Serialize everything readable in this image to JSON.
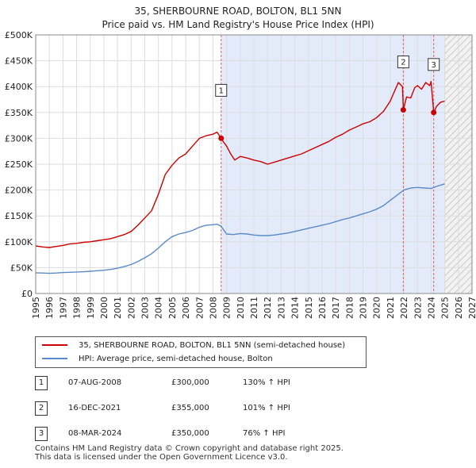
{
  "title": "35, SHERBOURNE ROAD, BOLTON, BL1 5NN",
  "subtitle": "Price paid vs. HM Land Registry's House Price Index (HPI)",
  "colors": {
    "price_line": "#cc0000",
    "hpi_line": "#5b8ac9",
    "shade": "#e3ebfa",
    "grid": "#dddddd"
  },
  "chart_data": {
    "type": "line",
    "xlim": [
      1995,
      2027
    ],
    "ylim": [
      0,
      500000
    ],
    "yticks": [
      0,
      50000,
      100000,
      150000,
      200000,
      250000,
      300000,
      350000,
      400000,
      450000,
      500000
    ],
    "ytick_labels": [
      "£0",
      "£50K",
      "£100K",
      "£150K",
      "£200K",
      "£250K",
      "£300K",
      "£350K",
      "£400K",
      "£450K",
      "£500K"
    ],
    "xticks": [
      1995,
      1996,
      1997,
      1998,
      1999,
      2000,
      2001,
      2002,
      2003,
      2004,
      2005,
      2006,
      2007,
      2008,
      2009,
      2010,
      2011,
      2012,
      2013,
      2014,
      2015,
      2016,
      2017,
      2018,
      2019,
      2020,
      2021,
      2022,
      2023,
      2024,
      2025,
      2026,
      2027
    ],
    "ownership_shade": [
      2008.6,
      2025.0
    ],
    "future_hatch_from": 2025.0,
    "series": [
      {
        "name": "35, SHERBOURNE ROAD, BOLTON, BL1 5NN (semi-detached house)",
        "color": "#cc0000",
        "x": [
          1995,
          1995.5,
          1996,
          1996.5,
          1997,
          1997.5,
          1998,
          1998.5,
          1999,
          1999.5,
          2000,
          2000.5,
          2001,
          2001.5,
          2002,
          2002.5,
          2003,
          2003.5,
          2004,
          2004.5,
          2005,
          2005.5,
          2006,
          2006.5,
          2007,
          2007.5,
          2008,
          2008.3,
          2008.6,
          2008.8,
          2009,
          2009.3,
          2009.6,
          2010,
          2010.5,
          2011,
          2011.5,
          2012,
          2012.5,
          2013,
          2013.5,
          2014,
          2014.5,
          2015,
          2015.5,
          2016,
          2016.5,
          2017,
          2017.5,
          2018,
          2018.5,
          2019,
          2019.5,
          2020,
          2020.5,
          2021,
          2021.3,
          2021.6,
          2021.9,
          2021.96,
          2022.2,
          2022.5,
          2022.8,
          2023,
          2023.3,
          2023.6,
          2023.9,
          2024.0,
          2024.19,
          2024.4,
          2024.7,
          2025.0
        ],
        "values": [
          92000,
          90000,
          89000,
          91000,
          93000,
          96000,
          97000,
          99000,
          100000,
          102000,
          104000,
          106000,
          110000,
          114000,
          120000,
          132000,
          146000,
          160000,
          192000,
          230000,
          248000,
          262000,
          270000,
          285000,
          300000,
          305000,
          308000,
          312000,
          300000,
          292000,
          285000,
          270000,
          258000,
          265000,
          262000,
          258000,
          255000,
          250000,
          254000,
          258000,
          262000,
          266000,
          270000,
          276000,
          282000,
          288000,
          294000,
          302000,
          308000,
          316000,
          322000,
          328000,
          332000,
          340000,
          352000,
          372000,
          390000,
          408000,
          400000,
          355000,
          380000,
          378000,
          398000,
          402000,
          395000,
          408000,
          402000,
          410000,
          350000,
          362000,
          370000,
          372000
        ]
      },
      {
        "name": "HPI: Average price, semi-detached house, Bolton",
        "color": "#5b8ac9",
        "x": [
          1995,
          1995.5,
          1996,
          1996.5,
          1997,
          1997.5,
          1998,
          1998.5,
          1999,
          1999.5,
          2000,
          2000.5,
          2001,
          2001.5,
          2002,
          2002.5,
          2003,
          2003.5,
          2004,
          2004.5,
          2005,
          2005.5,
          2006,
          2006.5,
          2007,
          2007.5,
          2008,
          2008.3,
          2008.6,
          2009,
          2009.5,
          2010,
          2010.5,
          2011,
          2011.5,
          2012,
          2012.5,
          2013,
          2013.5,
          2014,
          2014.5,
          2015,
          2015.5,
          2016,
          2016.5,
          2017,
          2017.5,
          2018,
          2018.5,
          2019,
          2019.5,
          2020,
          2020.5,
          2021,
          2021.5,
          2022,
          2022.5,
          2023,
          2023.5,
          2024,
          2024.5,
          2025.0
        ],
        "values": [
          40000,
          39500,
          39000,
          39500,
          40500,
          41000,
          41500,
          42000,
          43000,
          44000,
          45000,
          46500,
          49000,
          52000,
          56000,
          62000,
          69000,
          77000,
          88000,
          100000,
          110000,
          115000,
          118000,
          122000,
          128000,
          132000,
          133000,
          134000,
          130000,
          115000,
          114000,
          116000,
          115000,
          113000,
          112000,
          112000,
          113000,
          115000,
          117000,
          120000,
          123000,
          126000,
          129000,
          132000,
          135000,
          139000,
          143000,
          146000,
          150000,
          154000,
          158000,
          163000,
          170000,
          180000,
          190000,
          200000,
          204000,
          205000,
          204000,
          203000,
          208000,
          212000
        ]
      }
    ],
    "sales": [
      {
        "label": "1",
        "x": 2008.6,
        "value": 300000,
        "date": "07-AUG-2008",
        "price": "£300,000",
        "hpi": "130% ↑ HPI"
      },
      {
        "label": "2",
        "x": 2021.96,
        "value": 355000,
        "date": "16-DEC-2021",
        "price": "£355,000",
        "hpi": "101% ↑ HPI"
      },
      {
        "label": "3",
        "x": 2024.19,
        "value": 350000,
        "date": "08-MAR-2024",
        "price": "£350,000",
        "hpi": "76% ↑ HPI"
      }
    ]
  },
  "legend": {
    "price_label": "35, SHERBOURNE ROAD, BOLTON, BL1 5NN (semi-detached house)",
    "hpi_label": "HPI: Average price, semi-detached house, Bolton"
  },
  "footer": {
    "line1": "Contains HM Land Registry data © Crown copyright and database right 2025.",
    "line2": "This data is licensed under the Open Government Licence v3.0."
  }
}
